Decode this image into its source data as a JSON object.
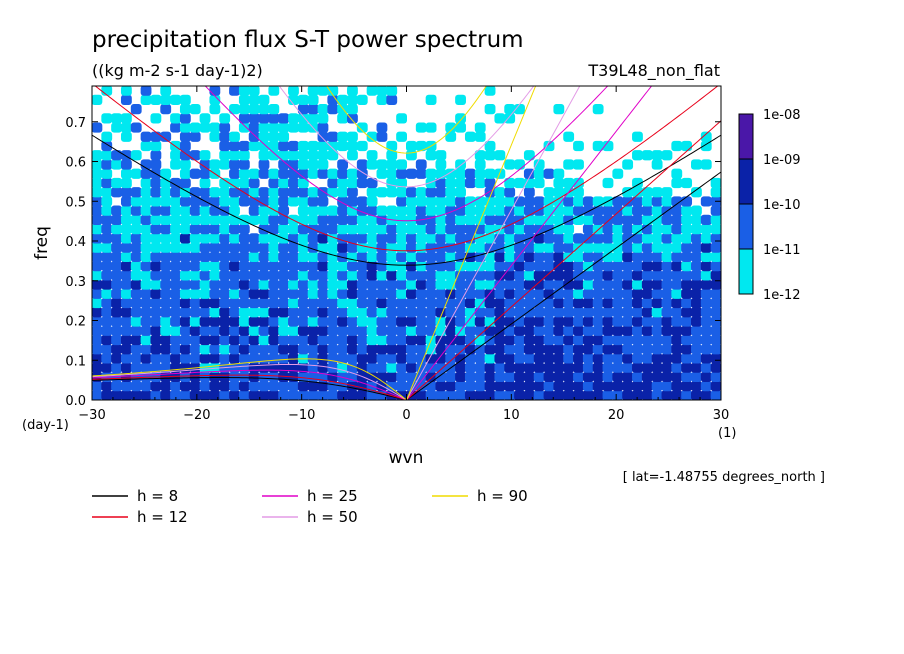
{
  "chart_data": {
    "type": "heatmap",
    "title": "precipitation flux S-T power spectrum",
    "units": "((kg m-2 s-1 day-1)2)",
    "experiment": "T39L48_non_flat",
    "xlabel": "wvn",
    "ylabel": "freq",
    "x_unit_label": "(1)",
    "y_unit_label": "(day-1)",
    "xlim": [
      -30,
      30
    ],
    "ylim": [
      0,
      0.79
    ],
    "x_ticks": [
      -30,
      -20,
      -10,
      0,
      10,
      20,
      30
    ],
    "x_tick_labels": [
      "-30",
      "-20",
      "-10",
      "0",
      "10",
      "20",
      "30"
    ],
    "y_ticks": [
      0.0,
      0.1,
      0.2,
      0.3,
      0.4,
      0.5,
      0.6,
      0.7
    ],
    "y_tick_labels": [
      "0.0",
      "0.1",
      "0.2",
      "0.3",
      "0.4",
      "0.5",
      "0.6",
      "0.7"
    ],
    "footnote": "[ lat=-1.48755 degrees_north ]",
    "colorbar": {
      "levels": [
        "1e-08",
        "1e-09",
        "1e-10",
        "1e-11",
        "1e-12"
      ],
      "colors": [
        "#4a17a8",
        "#0a22a8",
        "#1a5fe6",
        "#00e8f0"
      ]
    },
    "field_colors": [
      "#ffffff",
      "#00e8f0",
      "#1a5fe6",
      "#0a22a8"
    ],
    "dispersion_curves": [
      {
        "label": "h =  8",
        "h": 8,
        "color": "#000000"
      },
      {
        "label": "h = 12",
        "h": 12,
        "color": "#e8001a"
      },
      {
        "label": "h = 25",
        "h": 25,
        "color": "#e000c8"
      },
      {
        "label": "h = 50",
        "h": 50,
        "color": "#e39be6"
      },
      {
        "label": "h = 90",
        "h": 90,
        "color": "#f0dc00"
      }
    ]
  }
}
